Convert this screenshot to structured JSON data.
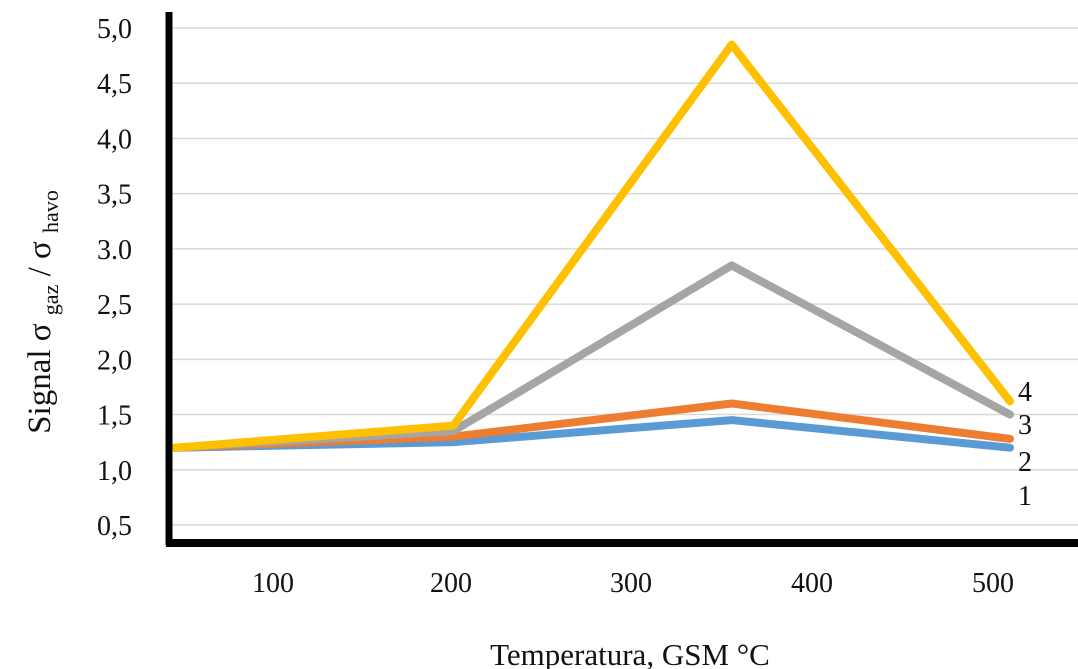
{
  "chart_data": {
    "type": "line",
    "title": "",
    "xlabel": "Temperatura, GSM  °C",
    "ylabel": {
      "main": "Signal",
      "symbol_num": "σ",
      "sub_num": "gaz",
      "slash": "/",
      "symbol_den": "σ",
      "sub_den": "havo"
    },
    "x_tick_labels": [
      "100",
      "200",
      "300",
      "400",
      "500"
    ],
    "y_tick_labels": [
      "0,5",
      "1,0",
      "1,5",
      "2,0",
      "2,5",
      "3.0",
      "3,5",
      "4,0",
      "4,5",
      "5,0"
    ],
    "x": [
      50,
      200,
      350,
      500
    ],
    "series": [
      {
        "name": "1",
        "values": [
          1.2,
          1.25,
          1.45,
          1.2
        ],
        "color": "#5b9bd5"
      },
      {
        "name": "2",
        "values": [
          1.2,
          1.3,
          1.6,
          1.28
        ],
        "color": "#ed7d31"
      },
      {
        "name": "3",
        "values": [
          1.2,
          1.35,
          2.85,
          1.5
        ],
        "color": "#a5a5a5"
      },
      {
        "name": "4",
        "values": [
          1.2,
          1.4,
          4.85,
          1.62
        ],
        "color": "#ffc000"
      }
    ],
    "ylim": [
      0.5,
      5.0
    ],
    "grid": true,
    "legend": "end-of-line labels"
  }
}
